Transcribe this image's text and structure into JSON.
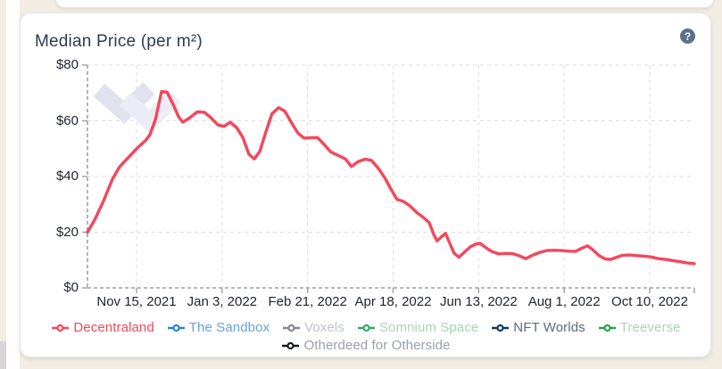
{
  "card": {
    "title": "Median Price (per m²)",
    "help_glyph": "?"
  },
  "chart_data": {
    "type": "line",
    "title": "Median Price (per m²)",
    "ylim": [
      0,
      80
    ],
    "y_tick_labels": [
      "$80",
      "$60",
      "$40",
      "$20",
      "$0"
    ],
    "y_tick_values": [
      80,
      60,
      40,
      20,
      0
    ],
    "x_tick_labels": [
      "Nov 15, 2021",
      "Jan 3, 2022",
      "Feb 21, 2022",
      "Apr 18, 2022",
      "Jun 13, 2022",
      "Aug 1, 2022",
      "Oct 10, 2022"
    ],
    "grid": true,
    "legend_position": "bottom",
    "series": [
      {
        "name": "Decentraland",
        "color": "#f4475b",
        "points": [
          [
            0.0,
            20
          ],
          [
            0.012,
            24.5
          ],
          [
            0.026,
            31
          ],
          [
            0.041,
            39
          ],
          [
            0.053,
            43.5
          ],
          [
            0.066,
            46.5
          ],
          [
            0.081,
            50
          ],
          [
            0.096,
            53
          ],
          [
            0.103,
            55
          ],
          [
            0.112,
            60.5
          ],
          [
            0.122,
            70.5
          ],
          [
            0.131,
            70.3
          ],
          [
            0.141,
            66
          ],
          [
            0.15,
            61.5
          ],
          [
            0.157,
            59.5
          ],
          [
            0.168,
            61
          ],
          [
            0.181,
            63.2
          ],
          [
            0.193,
            63
          ],
          [
            0.204,
            61
          ],
          [
            0.215,
            58.5
          ],
          [
            0.225,
            58
          ],
          [
            0.235,
            59.5
          ],
          [
            0.246,
            57.5
          ],
          [
            0.256,
            54
          ],
          [
            0.266,
            48
          ],
          [
            0.275,
            46.3
          ],
          [
            0.284,
            49
          ],
          [
            0.294,
            56
          ],
          [
            0.304,
            62.5
          ],
          [
            0.315,
            64.7
          ],
          [
            0.325,
            63.5
          ],
          [
            0.337,
            59
          ],
          [
            0.347,
            55.5
          ],
          [
            0.357,
            53.8
          ],
          [
            0.369,
            53.9
          ],
          [
            0.379,
            54
          ],
          [
            0.39,
            51.5
          ],
          [
            0.401,
            48.8
          ],
          [
            0.413,
            47.6
          ],
          [
            0.425,
            46.3
          ],
          [
            0.435,
            43.6
          ],
          [
            0.446,
            45.3
          ],
          [
            0.457,
            46.2
          ],
          [
            0.468,
            45.8
          ],
          [
            0.479,
            43
          ],
          [
            0.49,
            39.5
          ],
          [
            0.5,
            35.5
          ],
          [
            0.51,
            31.8
          ],
          [
            0.521,
            31
          ],
          [
            0.531,
            29.5
          ],
          [
            0.543,
            27
          ],
          [
            0.553,
            25.4
          ],
          [
            0.563,
            23.5
          ],
          [
            0.571,
            19
          ],
          [
            0.576,
            16.9
          ],
          [
            0.584,
            18.5
          ],
          [
            0.59,
            19.6
          ],
          [
            0.597,
            16
          ],
          [
            0.604,
            12.5
          ],
          [
            0.612,
            11
          ],
          [
            0.621,
            12.8
          ],
          [
            0.631,
            14.8
          ],
          [
            0.641,
            15.8
          ],
          [
            0.647,
            16
          ],
          [
            0.656,
            14.5
          ],
          [
            0.666,
            13.1
          ],
          [
            0.678,
            12.2
          ],
          [
            0.69,
            12.4
          ],
          [
            0.701,
            12.3
          ],
          [
            0.712,
            11.5
          ],
          [
            0.722,
            10.5
          ],
          [
            0.734,
            11.8
          ],
          [
            0.746,
            12.8
          ],
          [
            0.757,
            13.4
          ],
          [
            0.769,
            13.5
          ],
          [
            0.781,
            13.4
          ],
          [
            0.793,
            13.2
          ],
          [
            0.804,
            13.1
          ],
          [
            0.815,
            14.3
          ],
          [
            0.824,
            15.1
          ],
          [
            0.832,
            13.8
          ],
          [
            0.843,
            11.6
          ],
          [
            0.853,
            10.4
          ],
          [
            0.862,
            10.2
          ],
          [
            0.872,
            11
          ],
          [
            0.882,
            11.7
          ],
          [
            0.894,
            11.8
          ],
          [
            0.906,
            11.6
          ],
          [
            0.918,
            11.4
          ],
          [
            0.929,
            11.1
          ],
          [
            0.941,
            10.5
          ],
          [
            0.953,
            10.2
          ],
          [
            0.965,
            9.8
          ],
          [
            0.976,
            9.4
          ],
          [
            0.988,
            9
          ],
          [
            1.0,
            8.7
          ]
        ]
      }
    ]
  },
  "legend": {
    "items": [
      {
        "label": "Decentraland",
        "marker_color": "#f4475b",
        "label_color": "#f4475b"
      },
      {
        "label": "The Sandbox",
        "marker_color": "#3080d9",
        "label_color": "#66a3e0"
      },
      {
        "label": "Voxels",
        "marker_color": "#83878e",
        "label_color": "#bfc3c9"
      },
      {
        "label": "Somnium Space",
        "marker_color": "#34ab6b",
        "label_color": "#a3d9b4"
      },
      {
        "label": "NFT Worlds",
        "marker_color": "#123a63",
        "label_color": "#5d6b82"
      },
      {
        "label": "Treeverse",
        "marker_color": "#2da04c",
        "label_color": "#a8d8ae"
      },
      {
        "label": "Otherdeed for Otherside",
        "marker_color": "#14181f",
        "label_color": "#9aa0a8"
      }
    ]
  },
  "colors": {
    "grid": "#dcdcdc",
    "axis": "#a0a0a0",
    "watermark_dark": "#e2e2ef",
    "watermark_light": "#ececf7",
    "page_background": "#f1ede2"
  }
}
